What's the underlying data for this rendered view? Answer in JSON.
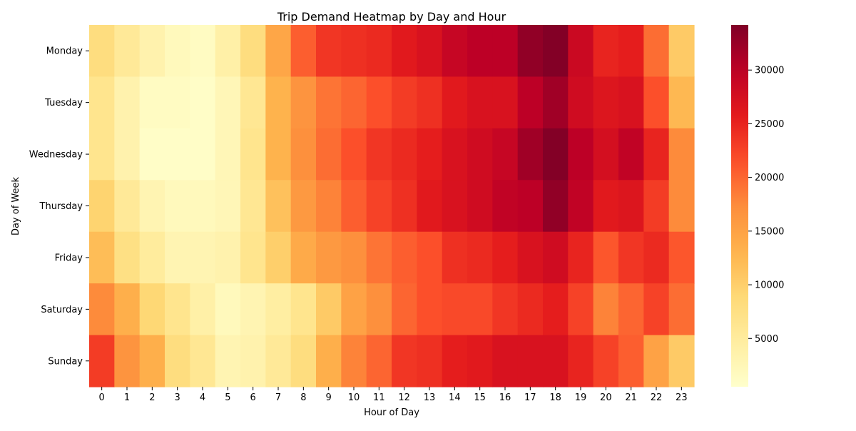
{
  "chart_data": {
    "type": "heatmap",
    "title": "Trip Demand Heatmap by Day and Hour",
    "xlabel": "Hour of Day",
    "ylabel": "Day of Week",
    "x": [
      "0",
      "1",
      "2",
      "3",
      "4",
      "5",
      "6",
      "7",
      "8",
      "9",
      "10",
      "11",
      "12",
      "13",
      "14",
      "15",
      "16",
      "17",
      "18",
      "19",
      "20",
      "21",
      "22",
      "23"
    ],
    "y": [
      "Monday",
      "Tuesday",
      "Wednesday",
      "Thursday",
      "Friday",
      "Saturday",
      "Sunday"
    ],
    "values": [
      [
        8000,
        5500,
        3500,
        2000,
        1500,
        4000,
        8000,
        14500,
        20500,
        23500,
        24000,
        24500,
        26000,
        27000,
        29000,
        30000,
        30000,
        33000,
        34000,
        28500,
        25000,
        25500,
        19500,
        10500
      ],
      [
        6500,
        3500,
        1500,
        1500,
        1000,
        2500,
        6000,
        13000,
        16500,
        19000,
        20000,
        21500,
        23000,
        24000,
        26000,
        27000,
        27000,
        30000,
        32000,
        28000,
        26500,
        27000,
        21500,
        12500
      ],
      [
        6500,
        3500,
        1000,
        1000,
        1000,
        2500,
        6500,
        13000,
        17000,
        19500,
        21500,
        23500,
        24500,
        25500,
        27000,
        28000,
        29000,
        32000,
        34000,
        30000,
        27500,
        29500,
        25000,
        17500
      ],
      [
        9500,
        5500,
        3000,
        2000,
        2000,
        2500,
        6000,
        11500,
        16000,
        18000,
        20500,
        22500,
        24000,
        26000,
        27000,
        28000,
        29500,
        30000,
        33000,
        29500,
        26000,
        26500,
        23000,
        17500
      ],
      [
        12000,
        7500,
        5000,
        3000,
        3000,
        3500,
        6500,
        10000,
        14000,
        16000,
        17000,
        19000,
        20500,
        21500,
        24000,
        24500,
        25500,
        27000,
        28000,
        25000,
        21000,
        23500,
        24500,
        21000
      ],
      [
        17500,
        13500,
        9000,
        6500,
        4000,
        2000,
        3000,
        4500,
        6500,
        10500,
        15000,
        17000,
        20000,
        21500,
        22000,
        22000,
        23500,
        24500,
        25500,
        22500,
        18000,
        20000,
        22500,
        19500
      ],
      [
        23000,
        16500,
        13500,
        8000,
        6000,
        3000,
        3500,
        5500,
        8000,
        13500,
        18000,
        20000,
        23500,
        24000,
        25500,
        26000,
        27000,
        27000,
        27000,
        25000,
        22500,
        20500,
        15000,
        10500
      ]
    ],
    "vmin": 500,
    "vmax": 34200,
    "colormap": "YlOrRd",
    "colorbar": {
      "ticks": [
        "5000",
        "10000",
        "15000",
        "20000",
        "25000",
        "30000"
      ],
      "tick_values": [
        5000,
        10000,
        15000,
        20000,
        25000,
        30000
      ]
    },
    "grid": false,
    "legend": "colorbar-right"
  }
}
